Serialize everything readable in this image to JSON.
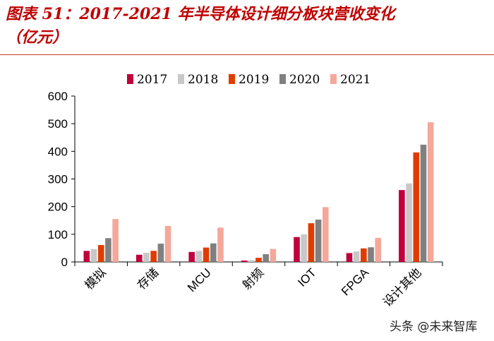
{
  "page": {
    "title_line1": "图表 51：2017-2021 年半导体设计细分板块营收变化",
    "title_line2": "（亿元）",
    "watermark": "头条 @未来智库"
  },
  "chart_data": {
    "type": "bar",
    "title": "",
    "categories": [
      "模拟",
      "存储",
      "MCU",
      "射频",
      "IOT",
      "FPGA",
      "设计其他"
    ],
    "series": [
      {
        "name": "2017",
        "color": "#c0003c",
        "values": [
          40,
          26,
          36,
          5,
          90,
          32,
          260
        ]
      },
      {
        "name": "2018",
        "color": "#c8c8c8",
        "values": [
          46,
          33,
          40,
          6,
          100,
          38,
          284
        ]
      },
      {
        "name": "2019",
        "color": "#e03c00",
        "values": [
          61,
          40,
          52,
          15,
          140,
          49,
          396
        ]
      },
      {
        "name": "2020",
        "color": "#808080",
        "values": [
          86,
          66,
          67,
          28,
          153,
          53,
          424
        ]
      },
      {
        "name": "2021",
        "color": "#f4a89a",
        "values": [
          155,
          130,
          124,
          47,
          198,
          87,
          505
        ]
      }
    ],
    "y_ticks": [
      "0",
      "100",
      "200",
      "300",
      "400",
      "500",
      "600"
    ],
    "ylim": [
      0,
      600
    ],
    "xlabel": "",
    "ylabel": "",
    "legend_position": "top",
    "grid": false
  }
}
